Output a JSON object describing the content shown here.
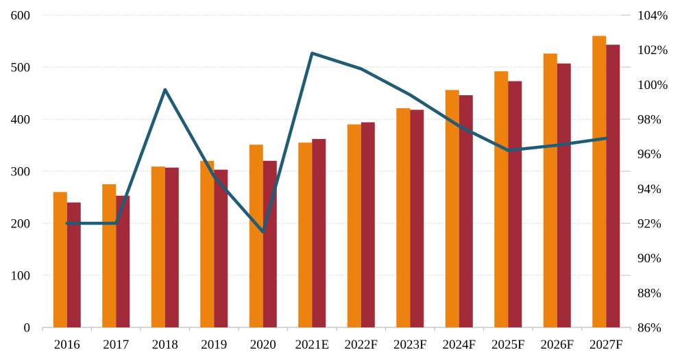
{
  "chart": {
    "title": ""
  },
  "colors": {
    "bar_orange": "#ED820E",
    "bar_red": "#A32A38",
    "line_teal": "#1F5C77",
    "gridline": "#C4C4C4",
    "axis": "#BFBFBF",
    "text": "#000000",
    "background": "#FFFFFF"
  },
  "chart_data": {
    "type": "combo",
    "title": "",
    "subtitle": "",
    "legend": "none",
    "grid": true,
    "categories": [
      "2016",
      "2017",
      "2018",
      "2019",
      "2020",
      "2021E",
      "2022F",
      "2023F",
      "2024F",
      "2025F",
      "2026F",
      "2027F"
    ],
    "series": [
      {
        "name": "bar-series-1",
        "type": "bar",
        "axis": "left",
        "color": "#ED820E",
        "values": [
          260,
          275,
          309,
          320,
          351,
          355,
          390,
          421,
          456,
          492,
          526,
          560
        ]
      },
      {
        "name": "bar-series-2",
        "type": "bar",
        "axis": "left",
        "color": "#A32A38",
        "values": [
          240,
          253,
          307,
          303,
          320,
          362,
          394,
          418,
          446,
          473,
          507,
          543
        ]
      },
      {
        "name": "line-series",
        "type": "line",
        "axis": "right",
        "color": "#1F5C77",
        "values": [
          92,
          92,
          99.7,
          94.7,
          91.5,
          101.8,
          100.9,
          99.4,
          97.6,
          96.2,
          96.5,
          96.9
        ]
      }
    ],
    "left_axis": {
      "min": 0,
      "max": 600,
      "step": 100,
      "tick_labels": [
        "0",
        "100",
        "200",
        "300",
        "400",
        "500",
        "600"
      ]
    },
    "right_axis": {
      "min": 86,
      "max": 104,
      "step": 2,
      "tick_labels": [
        "86%",
        "88%",
        "90%",
        "92%",
        "94%",
        "96%",
        "98%",
        "100%",
        "102%",
        "104%"
      ]
    }
  }
}
